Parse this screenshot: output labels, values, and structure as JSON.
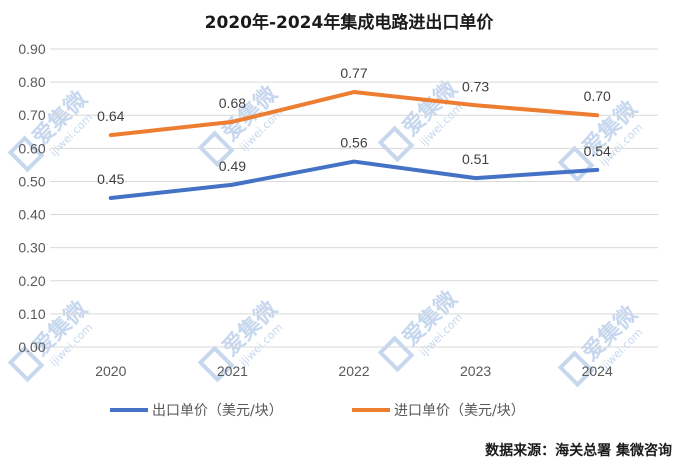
{
  "chart_data": {
    "type": "line",
    "title": "2020年-2024年集成电路进出口单价",
    "categories": [
      "2020",
      "2021",
      "2022",
      "2023",
      "2024"
    ],
    "ylim": [
      0,
      0.9
    ],
    "yticks": [
      "0.00",
      "0.10",
      "0.20",
      "0.30",
      "0.40",
      "0.50",
      "0.60",
      "0.70",
      "0.80",
      "0.90"
    ],
    "grid": true,
    "legend_position": "bottom",
    "series": [
      {
        "name": "出口单价（美元/块）",
        "values": [
          0.45,
          0.49,
          0.56,
          0.51,
          0.535
        ],
        "labels": [
          "0.45",
          "0.49",
          "0.56",
          "0.51",
          "0.54"
        ],
        "color": "#4472c4"
      },
      {
        "name": "进口单价（美元/块）",
        "values": [
          0.64,
          0.68,
          0.77,
          0.73,
          0.7
        ],
        "labels": [
          "0.64",
          "0.68",
          "0.77",
          "0.73",
          "0.70"
        ],
        "color": "#ed7d31"
      }
    ],
    "source": "数据来源：海关总署    集微咨询"
  },
  "watermark": {
    "text": "爱集微",
    "url": "ijiwei.com",
    "color": "#c7d8ee"
  }
}
